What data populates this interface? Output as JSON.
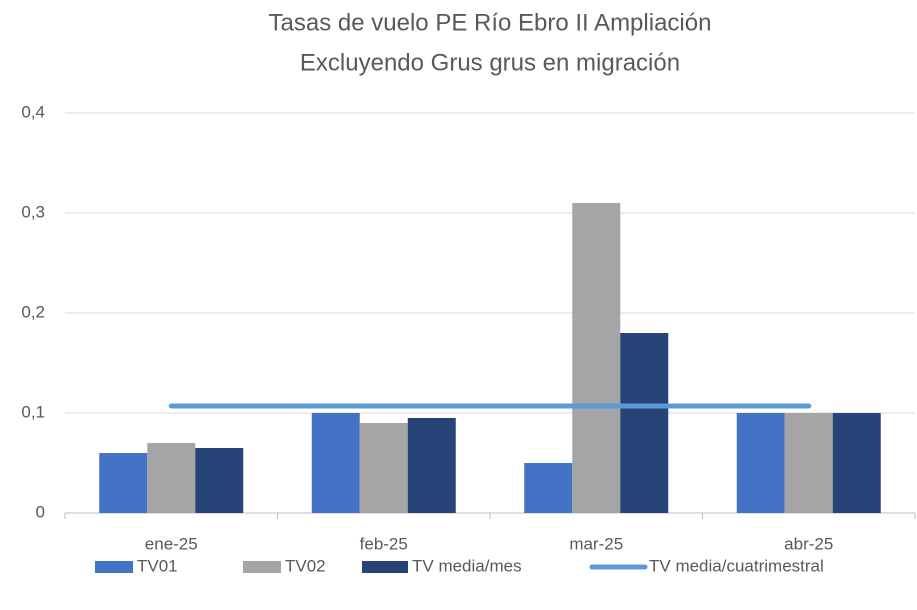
{
  "chart_data": {
    "type": "bar",
    "title": "Tasas de vuelo PE Río Ebro II Ampliación",
    "subtitle": "Excluyendo Grus grus en migración",
    "categories": [
      "ene-25",
      "feb-25",
      "mar-25",
      "abr-25"
    ],
    "series": [
      {
        "name": "TV01",
        "color": "#4472c4",
        "values": [
          0.06,
          0.1,
          0.05,
          0.1
        ]
      },
      {
        "name": "TV02",
        "color": "#a5a5a5",
        "values": [
          0.07,
          0.09,
          0.31,
          0.1
        ]
      },
      {
        "name": "TV media/mes",
        "color": "#264478",
        "values": [
          0.065,
          0.095,
          0.18,
          0.1
        ]
      },
      {
        "name": "TV media/cuatrimestral",
        "type": "line",
        "color": "#5b9bd5",
        "values": [
          0.107,
          0.107,
          0.107,
          0.107
        ]
      }
    ],
    "ylim": [
      0,
      0.4
    ],
    "yticks": [
      0,
      {
        "value": 0.1,
        "label": "0,1"
      },
      {
        "value": 0.2,
        "label": "0,2"
      },
      {
        "value": 0.3,
        "label": "0,3"
      },
      {
        "value": 0.4,
        "label": "0,4"
      }
    ],
    "grid": true,
    "legend": "bottom"
  }
}
